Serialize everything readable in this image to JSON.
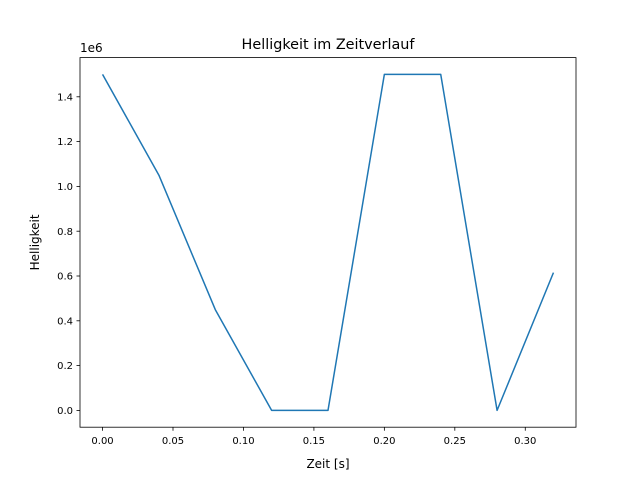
{
  "chart_data": {
    "type": "line",
    "title": "Helligkeit im Zeitverlauf",
    "xlabel": "Zeit [s]",
    "ylabel": "Helligkeit",
    "y_offset_label": "1e6",
    "xlim": [
      -0.016,
      0.336
    ],
    "ylim": [
      -75000,
      1575000
    ],
    "xticks": [
      0.0,
      0.05,
      0.1,
      0.15,
      0.2,
      0.25,
      0.3
    ],
    "xtick_labels": [
      "0.00",
      "0.05",
      "0.10",
      "0.15",
      "0.20",
      "0.25",
      "0.30"
    ],
    "yticks": [
      0,
      200000,
      400000,
      600000,
      800000,
      1000000,
      1200000,
      1400000
    ],
    "ytick_labels": [
      "0.0",
      "0.2",
      "0.4",
      "0.6",
      "0.8",
      "1.0",
      "1.2",
      "1.4"
    ],
    "grid": false,
    "series": [
      {
        "name": "Helligkeit",
        "color": "#1f77b4",
        "x": [
          0.0,
          0.04,
          0.08,
          0.12,
          0.16,
          0.2,
          0.24,
          0.28,
          0.32
        ],
        "y": [
          1500000,
          1050000,
          450000,
          0,
          0,
          1500000,
          1500000,
          0,
          615000
        ]
      }
    ]
  }
}
